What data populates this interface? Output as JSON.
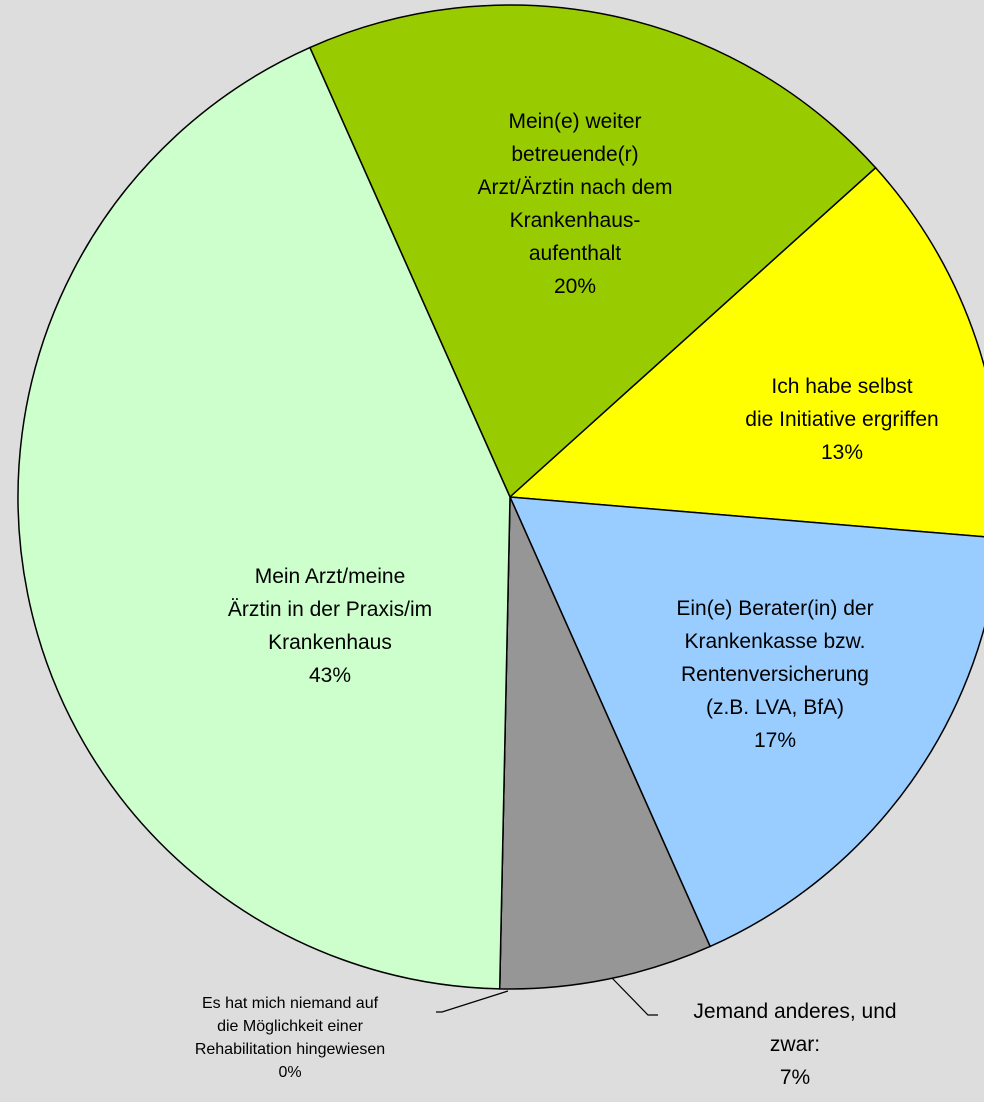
{
  "chart_data": {
    "type": "pie",
    "categories": [
      "Mein(e) weiter\nbetreuende(r)\nArzt/Ärztin nach dem\nKrankenhaus-\naufenthalt",
      "Ich habe selbst\ndie Initiative ergriffen",
      "Ein(e) Berater(in) der\nKrankenkasse bzw.\nRentenversicherung\n(z.B. LVA, BfA)",
      "Jemand anderes, und\nzwar:",
      "Es hat mich niemand auf\ndie Möglichkeit einer\nRehabilitation hingewiesen",
      "Mein Arzt/meine\nÄrztin in der Praxis/im\nKrankenhaus"
    ],
    "values": [
      20,
      13,
      17,
      7,
      0,
      43
    ],
    "value_labels": [
      "20%",
      "13%",
      "17%",
      "7%",
      "0%",
      "43%"
    ],
    "colors": [
      "#99cc00",
      "#ffff00",
      "#99ccff",
      "#969696",
      "#ffffff",
      "#ccffcc"
    ]
  }
}
